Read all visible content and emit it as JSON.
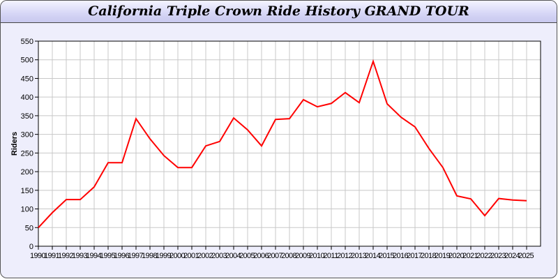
{
  "chart_data": {
    "type": "line",
    "title": "California Triple Crown Ride History GRAND TOUR",
    "xlabel": "",
    "ylabel": "Riders",
    "xlim": [
      1990,
      2026
    ],
    "ylim": [
      0,
      550
    ],
    "ytick_step": 50,
    "grid": true,
    "line_color": "#ff0000",
    "x": [
      1990,
      1991,
      1992,
      1993,
      1994,
      1995,
      1996,
      1997,
      1998,
      1999,
      2000,
      2001,
      2002,
      2003,
      2004,
      2005,
      2006,
      2007,
      2008,
      2009,
      2010,
      2011,
      2012,
      2013,
      2014,
      2015,
      2016,
      2017,
      2018,
      2019,
      2020,
      2021,
      2022,
      2023,
      2024,
      2025
    ],
    "values": [
      50,
      90,
      125,
      125,
      159,
      224,
      224,
      342,
      288,
      243,
      211,
      211,
      269,
      281,
      344,
      312,
      269,
      340,
      342,
      393,
      374,
      383,
      412,
      385,
      496,
      382,
      346,
      320,
      262,
      211,
      135,
      127,
      82,
      128,
      124,
      122
    ]
  }
}
